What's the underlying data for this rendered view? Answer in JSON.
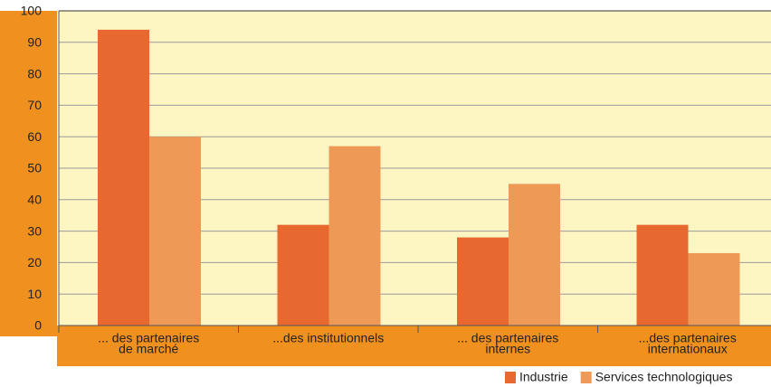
{
  "chart_data": {
    "type": "bar",
    "categories": [
      [
        "... des partenaires",
        "de marché"
      ],
      [
        "...des institutionnels"
      ],
      [
        "... des partenaires",
        "internes"
      ],
      [
        "...des partenaires",
        "internationaux"
      ]
    ],
    "series": [
      {
        "name": "Industrie",
        "color": "#e8692f",
        "values": [
          94,
          32,
          28,
          32
        ]
      },
      {
        "name": "Services technologiques",
        "color": "#ee9a56",
        "values": [
          60,
          57,
          45,
          23
        ]
      }
    ],
    "ylim": [
      0,
      100
    ],
    "yticks": [
      0,
      10,
      20,
      30,
      40,
      50,
      60,
      70,
      80,
      90,
      100
    ],
    "grid": true,
    "legend": "bottom-right"
  }
}
